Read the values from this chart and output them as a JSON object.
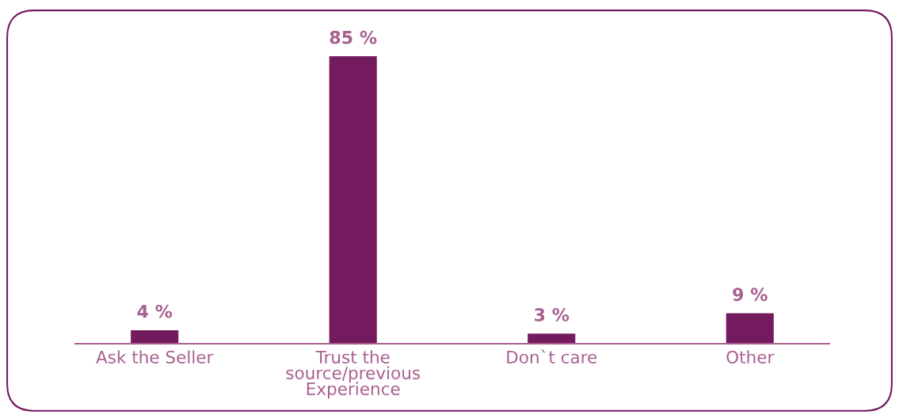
{
  "chart_data": {
    "type": "bar",
    "categories": [
      "Ask the Seller",
      "Trust the\nsource/previous\nExperience",
      "Don`t care",
      "Other"
    ],
    "values": [
      4,
      85,
      3,
      9
    ],
    "value_labels": [
      "4 %",
      "85 %",
      "3 %",
      "9 %"
    ],
    "color": "#741b5f",
    "grid": false,
    "legend": false
  }
}
